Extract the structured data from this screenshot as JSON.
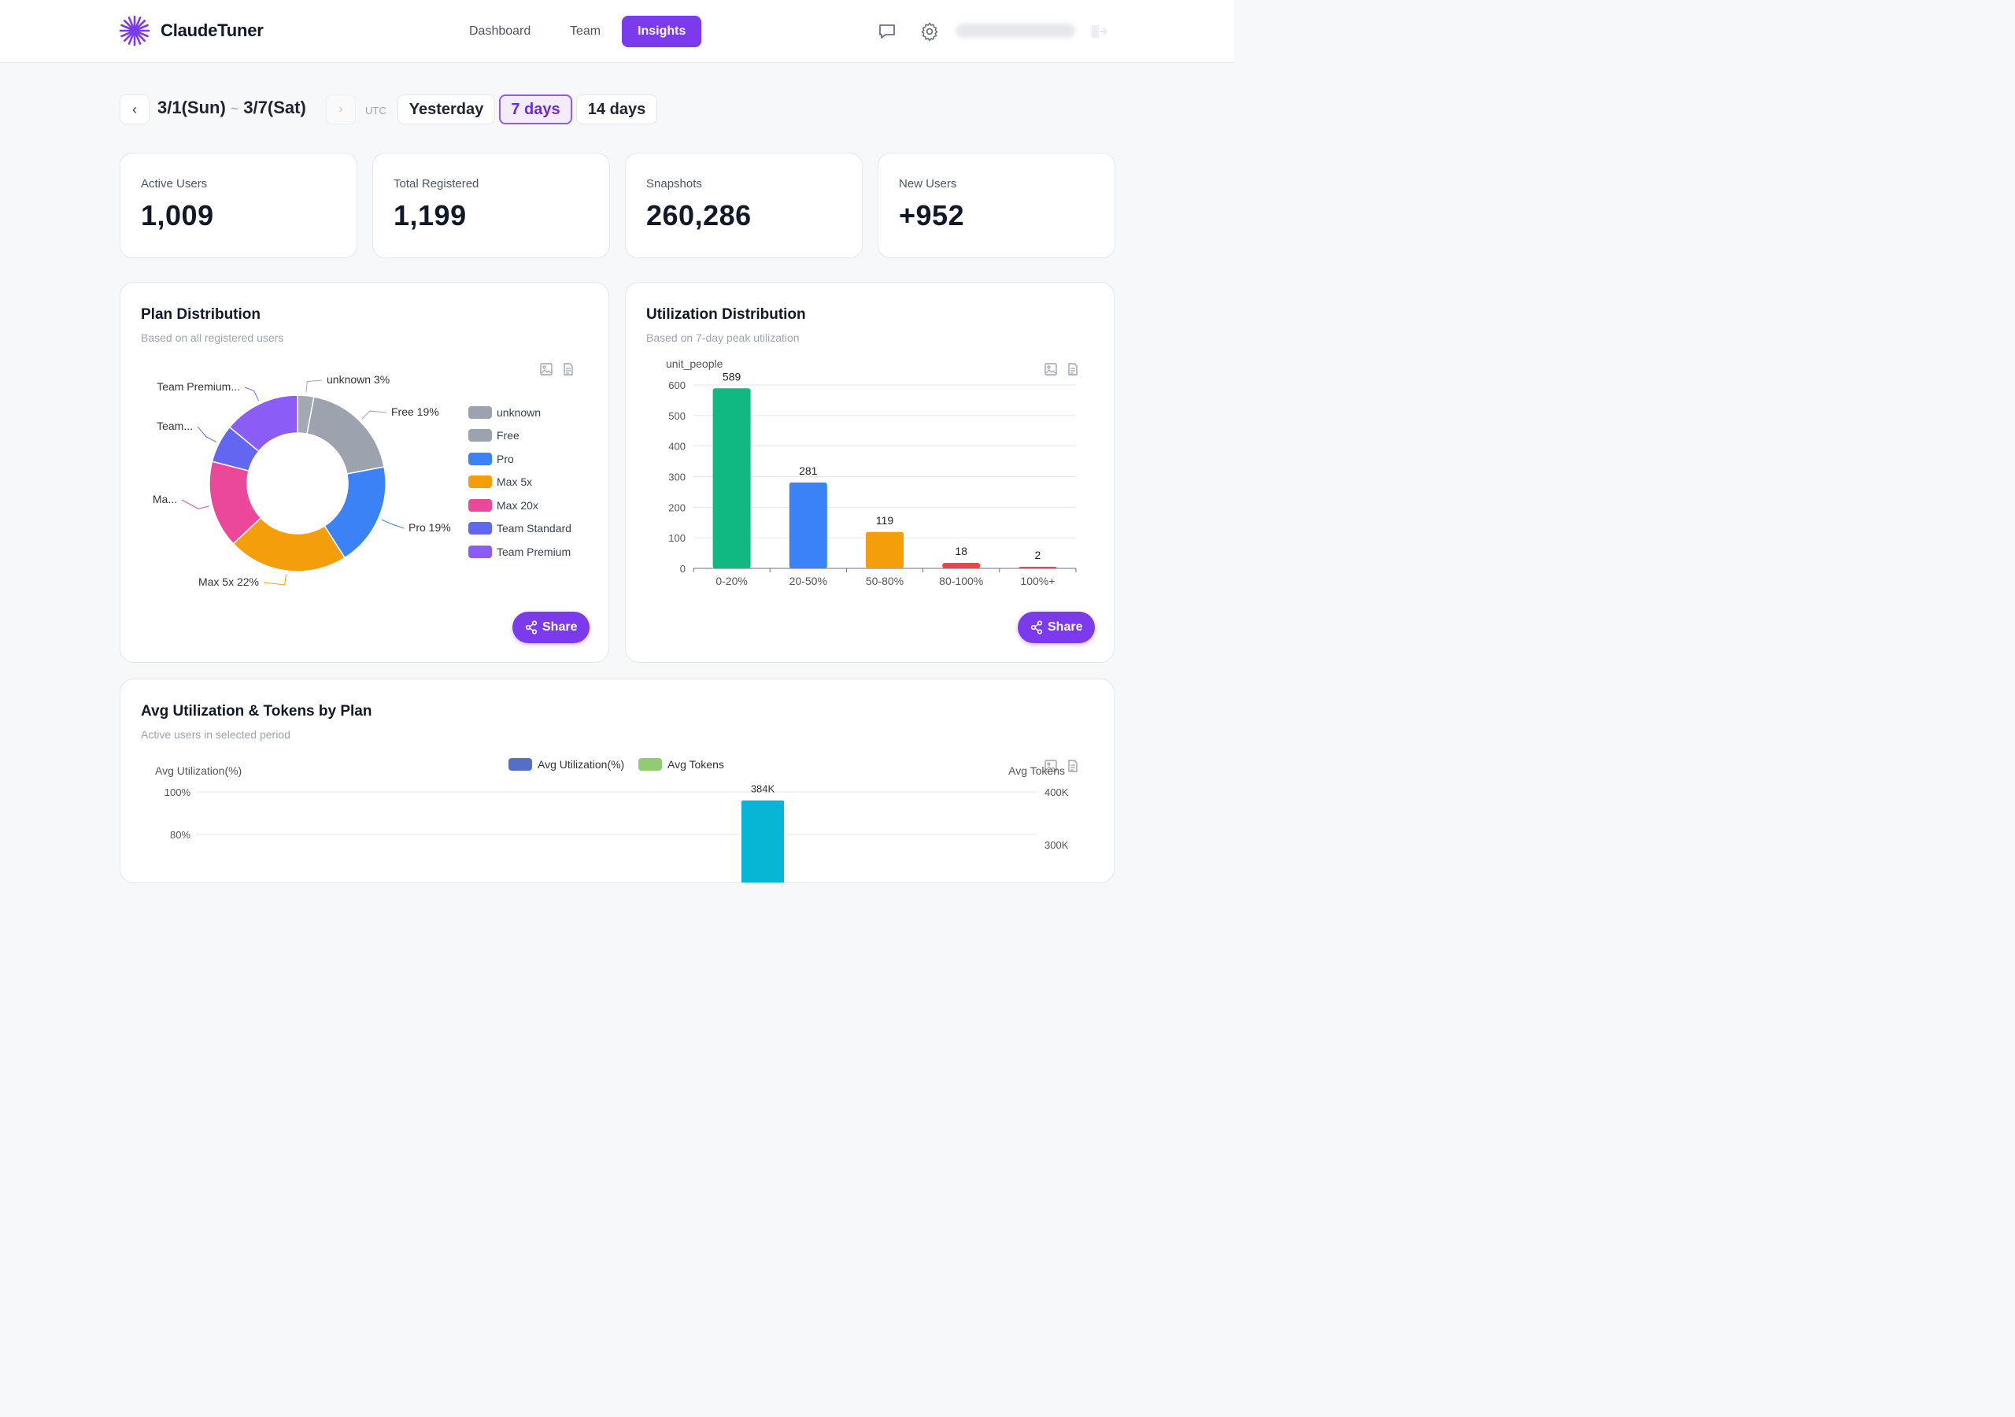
{
  "app": {
    "brand": "ClaudeTuner",
    "nav": [
      {
        "label": "Dashboard",
        "active": false
      },
      {
        "label": "Team",
        "active": false
      },
      {
        "label": "Insights",
        "active": true
      }
    ]
  },
  "date_filter": {
    "start": "3/1(Sun)",
    "separator": "~",
    "end": "3/7(Sat)",
    "timezone": "UTC",
    "ranges": [
      {
        "label": "Yesterday",
        "active": false
      },
      {
        "label": "7 days",
        "active": true
      },
      {
        "label": "14 days",
        "active": false
      }
    ]
  },
  "stats": [
    {
      "label": "Active Users",
      "value": "1,009"
    },
    {
      "label": "Total Registered",
      "value": "1,199"
    },
    {
      "label": "Snapshots",
      "value": "260,286"
    },
    {
      "label": "New Users",
      "value": "+952"
    }
  ],
  "plan_distribution": {
    "title": "Plan Distribution",
    "subtitle": "Based on all registered users",
    "share_label": "Share",
    "legend": [
      "unknown",
      "Free",
      "Pro",
      "Max 5x",
      "Max 20x",
      "Team Standard",
      "Team Premium"
    ],
    "slice_labels": {
      "unknown": "unknown 3%",
      "free": "Free 19%",
      "pro": "Pro 19%",
      "max5x": "Max 5x 22%",
      "max20x": "Ma...",
      "team_standard": "Team...",
      "team_premium": "Team Premium..."
    }
  },
  "utilization_distribution": {
    "title": "Utilization Distribution",
    "subtitle": "Based on 7-day peak utilization",
    "share_label": "Share"
  },
  "avg_by_plan": {
    "title": "Avg Utilization & Tokens by Plan",
    "subtitle": "Active users in selected period"
  },
  "chart_data": [
    {
      "type": "pie",
      "title": "Plan Distribution",
      "categories": [
        "unknown",
        "Free",
        "Pro",
        "Max 5x",
        "Max 20x",
        "Team Standard",
        "Team Premium"
      ],
      "values": [
        3,
        19,
        19,
        22,
        16,
        7,
        14
      ],
      "colors": [
        "#a3a9b4",
        "#9ca3af",
        "#3b82f6",
        "#f59e0b",
        "#ec4899",
        "#6366f1",
        "#8b5cf6"
      ]
    },
    {
      "type": "bar",
      "title": "Utilization Distribution",
      "ylabel": "unit_people",
      "categories": [
        "0-20%",
        "20-50%",
        "50-80%",
        "80-100%",
        "100%+"
      ],
      "values": [
        589,
        281,
        119,
        18,
        2
      ],
      "colors": [
        "#10b981",
        "#3b82f6",
        "#f59e0b",
        "#ef4444",
        "#ef4444"
      ],
      "ylim": [
        0,
        600
      ],
      "yticks": [
        0,
        100,
        200,
        300,
        400,
        500,
        600
      ],
      "grid": true
    },
    {
      "type": "bar",
      "title": "Avg Utilization & Tokens by Plan",
      "series": [
        {
          "name": "Avg Utilization(%)",
          "color": "#5470c6",
          "axis": "left"
        },
        {
          "name": "Avg Tokens",
          "color": "#91cc75",
          "axis": "right"
        }
      ],
      "ylabel": "Avg Utilization(%)",
      "y2label": "Avg Tokens",
      "yticks_visible": [
        "100%",
        "80%"
      ],
      "y2ticks_visible": [
        "400K",
        "300K"
      ],
      "visible_bar": {
        "label": "384K",
        "value": 384000,
        "color": "#06b6d4"
      },
      "legend_position": "top-center"
    }
  ]
}
